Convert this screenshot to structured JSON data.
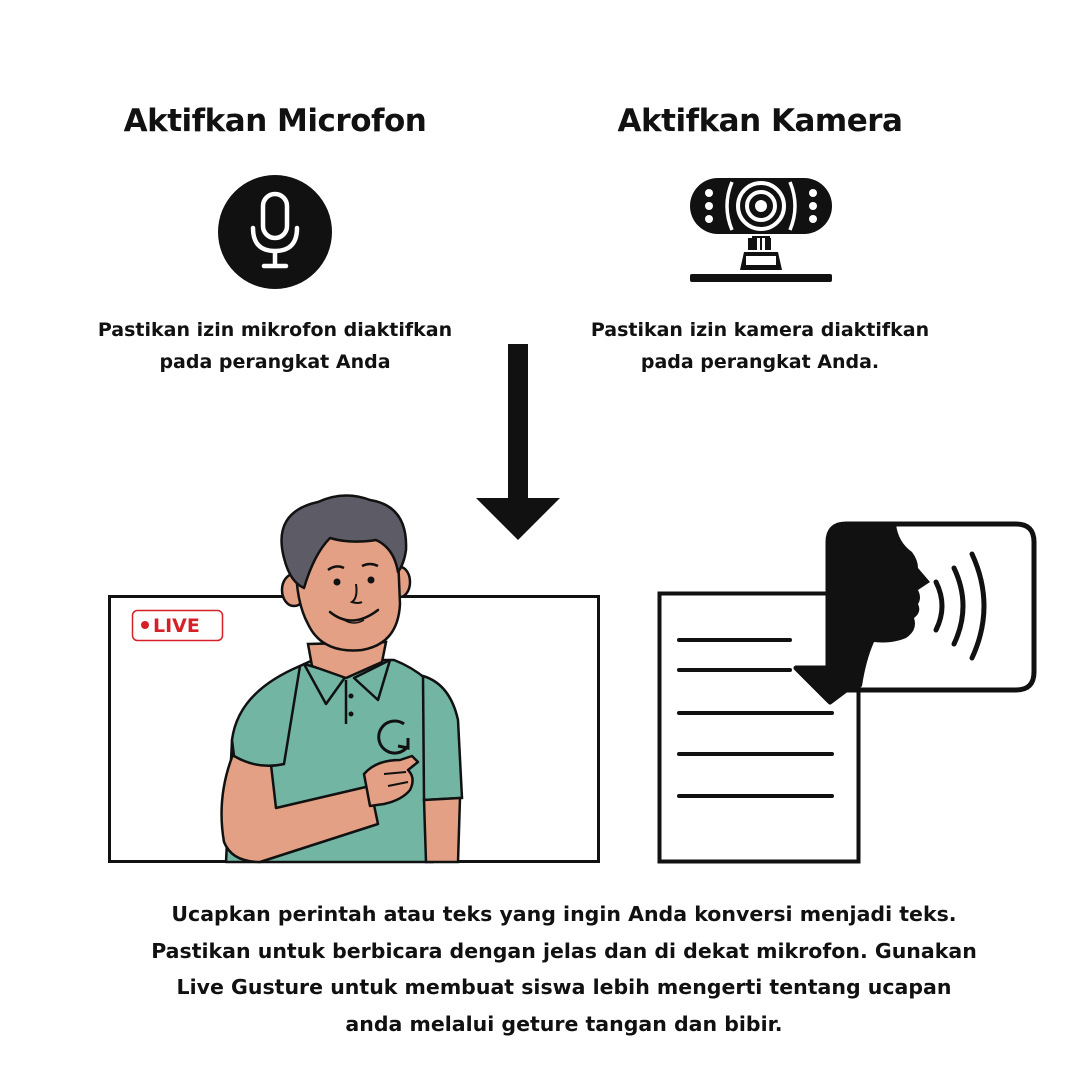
{
  "microphone": {
    "heading": "Aktifkan Microfon",
    "icon": "microphone-icon",
    "caption_lines": [
      "Pastikan izin mikrofon diaktifkan",
      "pada perangkat Anda"
    ]
  },
  "camera": {
    "heading": "Aktifkan Kamera",
    "icon": "webcam-icon",
    "caption_lines": [
      "Pastikan izin kamera diaktifkan",
      "pada perangkat Anda."
    ]
  },
  "flow_arrow": "arrow-down-icon",
  "live_stream": {
    "badge": "LIVE",
    "badge_color": "#d52027",
    "shirt_color": "#72b5a3",
    "skin_color": "#e3a084",
    "hair_color": "#5d5c66"
  },
  "speech_to_text": {
    "document_icon": "document-icon",
    "speaking_icon": "speaking-head-icon"
  },
  "instructions_lines": [
    "Ucapkan perintah atau teks yang ingin Anda konversi menjadi teks.",
    "Pastikan untuk berbicara dengan jelas dan di dekat mikrofon. Gunakan",
    "Live Gusture untuk membuat siswa lebih mengerti tentang ucapan",
    "anda melalui geture tangan dan bibir."
  ]
}
